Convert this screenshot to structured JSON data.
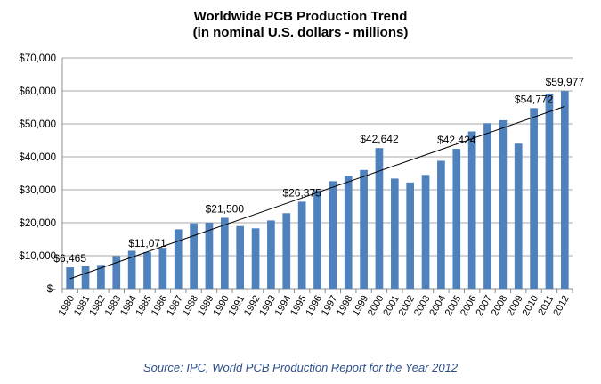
{
  "chart_data": {
    "type": "bar",
    "title": "Worldwide PCB Production Trend",
    "subtitle": "(in nominal U.S. dollars - millions)",
    "xlabel": "",
    "ylabel": "",
    "ylim": [
      0,
      70000
    ],
    "yticks": [
      0,
      10000,
      20000,
      30000,
      40000,
      50000,
      60000,
      70000
    ],
    "ytick_labels": [
      "$-",
      "$10,000",
      "$20,000",
      "$30,000",
      "$40,000",
      "$50,000",
      "$60,000",
      "$70,000"
    ],
    "grid": true,
    "bar_color": "#4f81bd",
    "trend_line": {
      "from": 3000,
      "to": 55300,
      "color": "#000000"
    },
    "categories": [
      "1980",
      "1981",
      "1982",
      "1983",
      "1984",
      "1985",
      "1986",
      "1987",
      "1988",
      "1989",
      "1990",
      "1991",
      "1992",
      "1993",
      "1994",
      "1995",
      "1996",
      "1997",
      "1998",
      "1999",
      "2000",
      "2001",
      "2002",
      "2003",
      "2004",
      "2005",
      "2006",
      "2007",
      "2008",
      "2009",
      "2010",
      "2011",
      "2012"
    ],
    "values": [
      6465,
      6800,
      7200,
      9900,
      11500,
      11071,
      12400,
      18000,
      19800,
      20000,
      21500,
      19000,
      18300,
      20700,
      22900,
      26375,
      29800,
      32600,
      34200,
      36000,
      42642,
      33400,
      32200,
      34500,
      38800,
      42424,
      47700,
      50200,
      51100,
      44000,
      54772,
      59200,
      59977
    ],
    "data_labels": [
      {
        "index": 0,
        "text": "$6,465"
      },
      {
        "index": 5,
        "text": "$11,071"
      },
      {
        "index": 10,
        "text": "$21,500"
      },
      {
        "index": 15,
        "text": "$26,375"
      },
      {
        "index": 20,
        "text": "$42,642"
      },
      {
        "index": 25,
        "text": "$42,424"
      },
      {
        "index": 30,
        "text": "$54,772"
      },
      {
        "index": 32,
        "text": "$59,977"
      }
    ]
  },
  "source": "Source: IPC, World PCB Production Report for the Year 2012"
}
